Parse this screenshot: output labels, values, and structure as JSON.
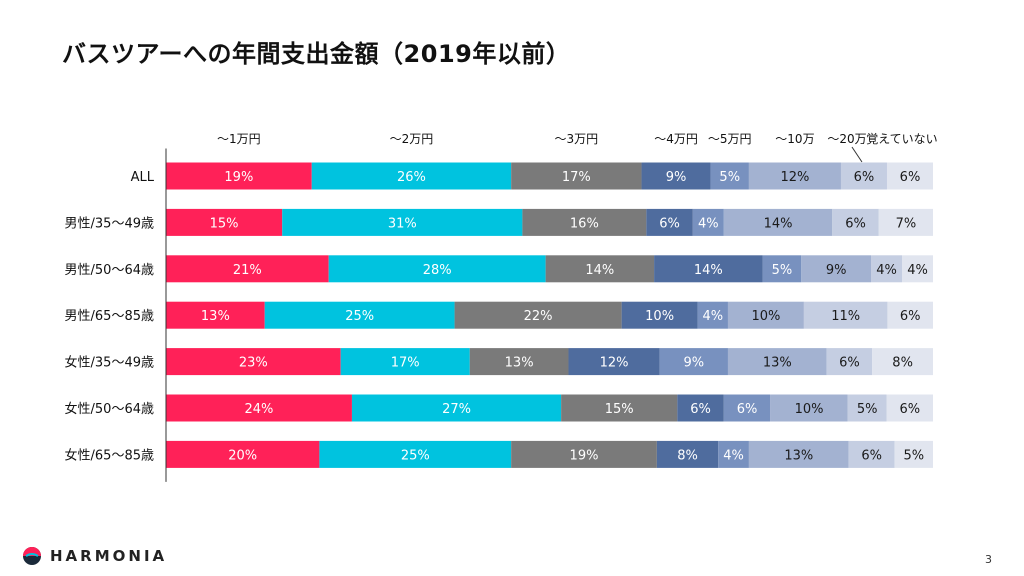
{
  "page": {
    "title": "バスツアーへの年間支出金額（2019年以前）",
    "page_number": "3",
    "logo_text": "HARMONIA"
  },
  "chart_data": {
    "type": "bar",
    "stacked": true,
    "orientation": "horizontal",
    "percent_scale": true,
    "categories": [
      "ALL",
      "男性/35～49歳",
      "男性/50～64歳",
      "男性/65～85歳",
      "女性/35～49歳",
      "女性/50～64歳",
      "女性/65～85歳"
    ],
    "series": [
      {
        "name": "～1万円",
        "color": "#ff2158",
        "label_color": "#ffffff",
        "values": [
          19,
          15,
          21,
          13,
          23,
          24,
          20
        ]
      },
      {
        "name": "～2万円",
        "color": "#00c3df",
        "label_color": "#ffffff",
        "values": [
          26,
          31,
          28,
          25,
          17,
          27,
          25
        ]
      },
      {
        "name": "～3万円",
        "color": "#7a7a7a",
        "label_color": "#ffffff",
        "values": [
          17,
          16,
          14,
          22,
          13,
          15,
          19
        ]
      },
      {
        "name": "～4万円",
        "color": "#4f6c9e",
        "label_color": "#ffffff",
        "values": [
          9,
          6,
          14,
          10,
          12,
          6,
          8
        ]
      },
      {
        "name": "～5万円",
        "color": "#7891bf",
        "label_color": "#ffffff",
        "values": [
          5,
          4,
          5,
          4,
          9,
          6,
          4
        ]
      },
      {
        "name": "～10万",
        "color": "#a3b2d1",
        "label_color": "#1a1a1a",
        "values": [
          12,
          14,
          9,
          10,
          13,
          10,
          13
        ]
      },
      {
        "name": "～20万",
        "color": "#c5cee2",
        "label_color": "#1a1a1a",
        "values": [
          6,
          6,
          4,
          11,
          6,
          5,
          6
        ]
      },
      {
        "name": "覚えていない",
        "color": "#e1e5ef",
        "label_color": "#1a1a1a",
        "values": [
          6,
          7,
          4,
          6,
          8,
          6,
          5
        ]
      }
    ],
    "value_suffix": "%",
    "title": "",
    "xlabel": "",
    "ylabel": "",
    "legend_position": "top"
  }
}
